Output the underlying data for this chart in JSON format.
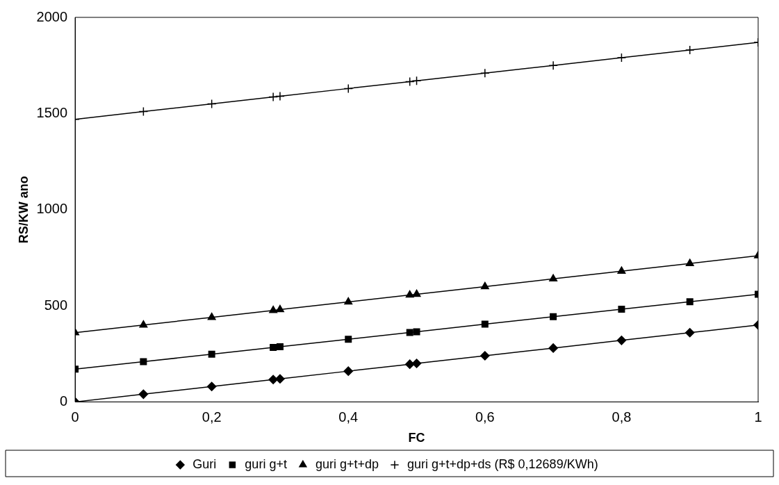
{
  "chart_data": {
    "type": "line",
    "xlabel": "FC",
    "ylabel": "RS/KW ano",
    "x": [
      0,
      0.1,
      0.2,
      0.29,
      0.3,
      0.4,
      0.49,
      0.5,
      0.6,
      0.7,
      0.8,
      0.9,
      1
    ],
    "xlim": [
      0,
      1
    ],
    "xticks": [
      0,
      {
        "value": 0.2,
        "label": "0,2"
      },
      {
        "value": 0.4,
        "label": "0,4"
      },
      {
        "value": 0.6,
        "label": "0,6"
      },
      {
        "value": 0.8,
        "label": "0,8"
      },
      1
    ],
    "ylim": [
      0,
      2000
    ],
    "yticks": [
      0,
      500,
      1000,
      1500,
      2000
    ],
    "grid": false,
    "legend": "bottom",
    "line_style": "solid",
    "series": [
      {
        "name": "Guri",
        "color": "#000000",
        "marker": "diamond",
        "values": [
          0,
          40,
          80,
          116,
          120,
          160,
          196,
          200,
          240,
          280,
          320,
          360,
          400
        ]
      },
      {
        "name": "guri g+t",
        "color": "#000000",
        "marker": "square",
        "values": [
          170,
          209,
          248,
          283,
          287,
          326,
          361,
          365,
          404,
          443,
          482,
          521,
          560
        ]
      },
      {
        "name": "guri g+t+dp",
        "color": "#000000",
        "marker": "triangle",
        "values": [
          360,
          400,
          440,
          476,
          480,
          520,
          556,
          560,
          600,
          640,
          680,
          720,
          760
        ]
      },
      {
        "name": "guri g+t+dp+ds (R$ 0,12689/KWh)",
        "color": "#000000",
        "marker": "cross",
        "values": [
          1470,
          1510,
          1550,
          1586,
          1590,
          1630,
          1666,
          1670,
          1710,
          1750,
          1790,
          1830,
          1870
        ]
      }
    ]
  }
}
